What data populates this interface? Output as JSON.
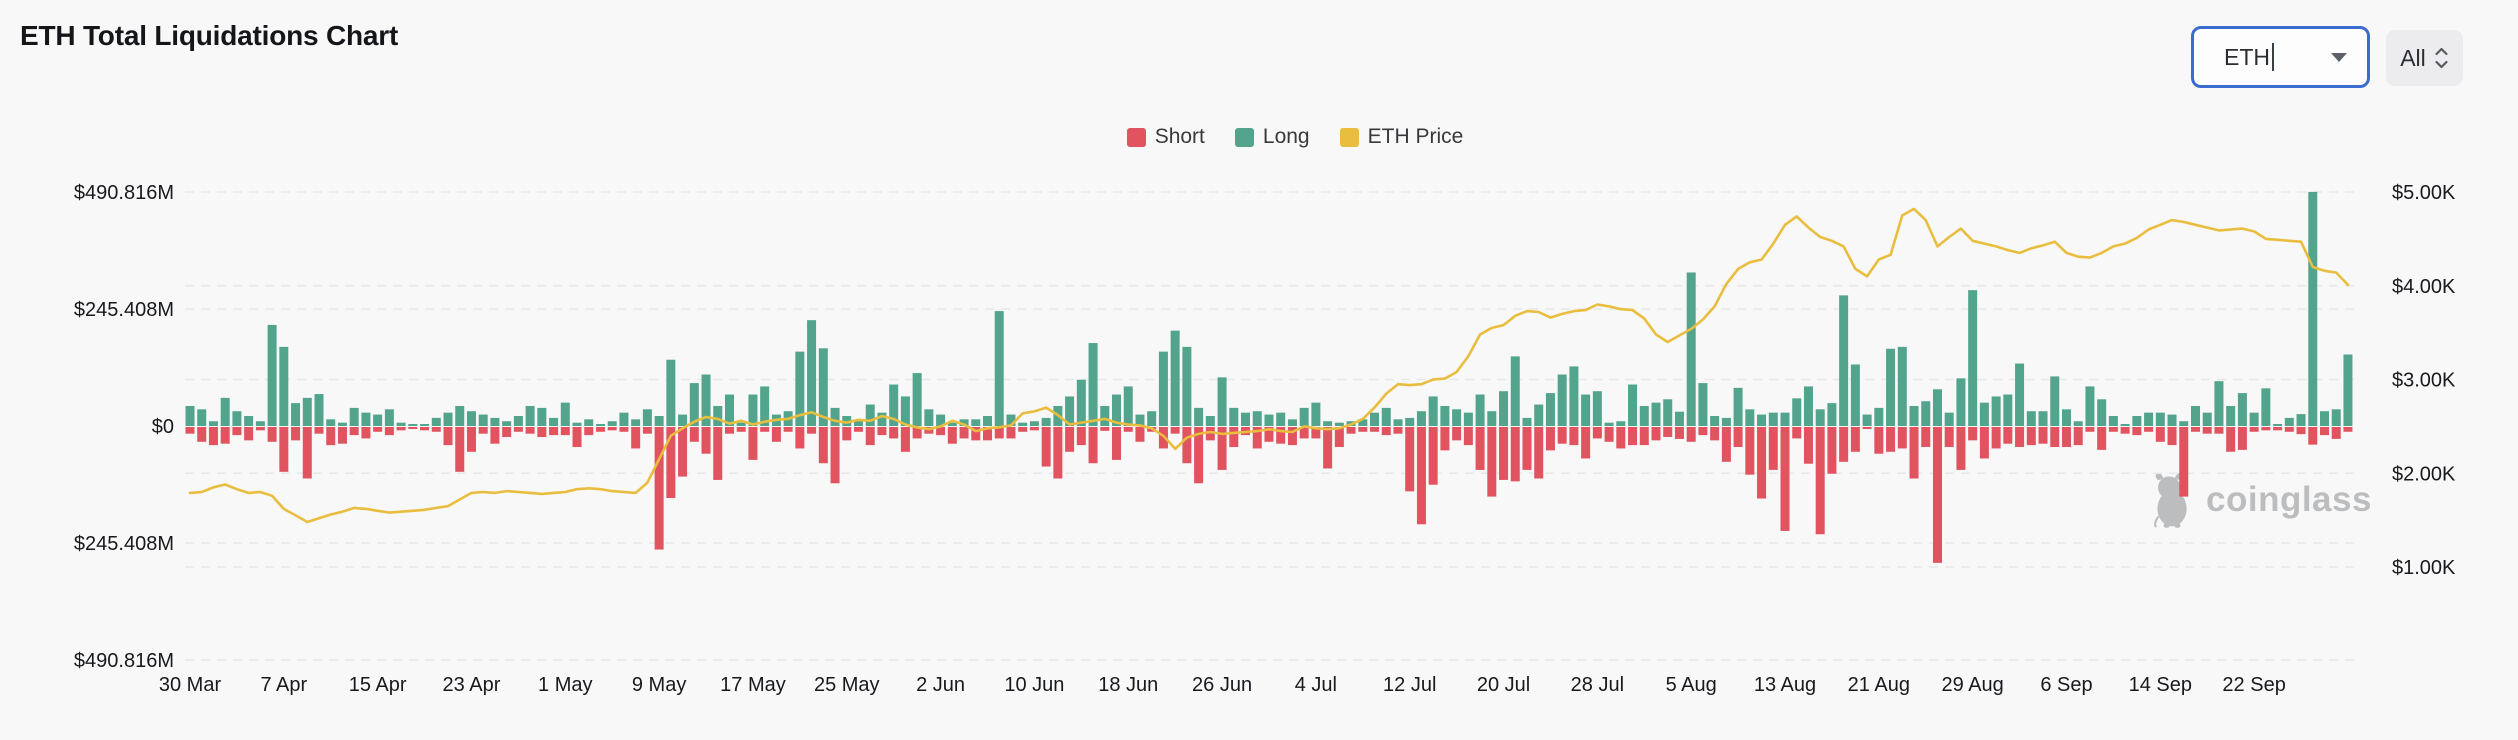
{
  "header": {
    "title": "ETH Total Liquidations Chart",
    "symbol_select": {
      "value": "ETH"
    },
    "range_select": {
      "value": "All"
    }
  },
  "legend": {
    "items": [
      {
        "label": "Short",
        "color": "#e0535f"
      },
      {
        "label": "Long",
        "color": "#52a48c"
      },
      {
        "label": "ETH Price",
        "color": "#e9bd3e"
      }
    ]
  },
  "watermark": {
    "text": "coinglass"
  },
  "chart_data": {
    "type": "bar",
    "title": "ETH Total Liquidations Chart",
    "time_range": "30 Mar - 30 Sep, daily bars",
    "grid": "dashed",
    "grid_color": "#e6e7e9",
    "x_tick_labels": [
      "30 Mar",
      "7 Apr",
      "15 Apr",
      "23 Apr",
      "1 May",
      "9 May",
      "17 May",
      "25 May",
      "2 Jun",
      "10 Jun",
      "18 Jun",
      "26 Jun",
      "4 Jul",
      "12 Jul",
      "20 Jul",
      "28 Jul",
      "5 Aug",
      "13 Aug",
      "21 Aug",
      "29 Aug",
      "6 Sep",
      "14 Sep",
      "22 Sep"
    ],
    "x_tick_interval_days": 8,
    "left_axis": {
      "title": "Liquidations (USD)",
      "tick_labels": [
        "$490.816M",
        "$245.408M",
        "$0",
        "$245.408M",
        "$490.816M"
      ],
      "max_abs_m": 490.816
    },
    "right_axis": {
      "title": "ETH Price",
      "tick_labels": [
        "$5.00K",
        "$4.00K",
        "$3.00K",
        "$2.00K",
        "$1.00K"
      ],
      "range_k": [
        1.0,
        5.0
      ]
    },
    "series": [
      {
        "name": "Short",
        "type": "bar",
        "color": "#e0535f",
        "unit": "$M",
        "direction": "down",
        "values": [
          14,
          31,
          38,
          35,
          17,
          28,
          7,
          31,
          94,
          28,
          108,
          14,
          38,
          35,
          17,
          24,
          10,
          17,
          7,
          4,
          7,
          10,
          38,
          94,
          52,
          14,
          35,
          21,
          10,
          14,
          21,
          17,
          17,
          42,
          17,
          10,
          7,
          10,
          45,
          14,
          257,
          149,
          104,
          31,
          56,
          111,
          14,
          10,
          69,
          10,
          31,
          10,
          45,
          14,
          76,
          118,
          28,
          10,
          38,
          17,
          24,
          52,
          24,
          14,
          17,
          35,
          24,
          28,
          28,
          24,
          24,
          10,
          7,
          83,
          108,
          52,
          38,
          76,
          8,
          69,
          10,
          31,
          10,
          45,
          14,
          76,
          118,
          28,
          90,
          42,
          17,
          45,
          31,
          35,
          38,
          24,
          24,
          87,
          42,
          14,
          10,
          10,
          17,
          14,
          135,
          204,
          121,
          49,
          28,
          38,
          90,
          146,
          111,
          114,
          90,
          108,
          49,
          35,
          38,
          66,
          24,
          31,
          45,
          38,
          38,
          28,
          21,
          25,
          31,
          17,
          28,
          73,
          42,
          100,
          150,
          90,
          218,
          24,
          77,
          225,
          98,
          73,
          52,
          3,
          56,
          52,
          45,
          108,
          42,
          285,
          42,
          90,
          28,
          66,
          45,
          35,
          42,
          38,
          35,
          42,
          42,
          38,
          10,
          48,
          10,
          14,
          17,
          10,
          31,
          38,
          146,
          10,
          14,
          14,
          52,
          48,
          10,
          7,
          7,
          10,
          15,
          37,
          17,
          25,
          10
        ]
      },
      {
        "name": "Long",
        "type": "bar",
        "color": "#52a48c",
        "unit": "$M",
        "direction": "up",
        "values": [
          42,
          35,
          10,
          59,
          31,
          21,
          10,
          212,
          166,
          48,
          59,
          67,
          14,
          7,
          38,
          28,
          24,
          35,
          7,
          4,
          2,
          17,
          28,
          42,
          31,
          24,
          17,
          10,
          21,
          42,
          38,
          17,
          49,
          7,
          14,
          3,
          10,
          28,
          14,
          35,
          21,
          139,
          24,
          90,
          108,
          42,
          66,
          7,
          66,
          83,
          24,
          31,
          156,
          222,
          163,
          38,
          21,
          10,
          45,
          28,
          87,
          62,
          111,
          35,
          24,
          7,
          14,
          14,
          21,
          241,
          24,
          7,
          10,
          17,
          42,
          62,
          97,
          174,
          42,
          66,
          83,
          24,
          31,
          156,
          200,
          166,
          38,
          21,
          102,
          38,
          28,
          31,
          24,
          28,
          14,
          38,
          49,
          10,
          7,
          10,
          14,
          28,
          38,
          14,
          17,
          31,
          62,
          42,
          35,
          28,
          66,
          31,
          73,
          146,
          17,
          45,
          69,
          108,
          125,
          66,
          73,
          7,
          10,
          87,
          42,
          49,
          56,
          30,
          322,
          90,
          21,
          17,
          80,
          35,
          24,
          28,
          28,
          58,
          83,
          35,
          48,
          274,
          129,
          24,
          38,
          162,
          166,
          42,
          52,
          77,
          28,
          100,
          285,
          49,
          62,
          66,
          131,
          31,
          31,
          104,
          35,
          10,
          83,
          56,
          21,
          3,
          21,
          28,
          28,
          24,
          10,
          42,
          28,
          94,
          42,
          69,
          28,
          79,
          3,
          17,
          25,
          491,
          31,
          35,
          150
        ]
      },
      {
        "name": "ETH Price",
        "type": "line",
        "color": "#e9bd3e",
        "unit": "$",
        "axis": "right",
        "values": [
          1790,
          1800,
          1850,
          1880,
          1830,
          1790,
          1800,
          1760,
          1620,
          1550,
          1480,
          1520,
          1560,
          1590,
          1630,
          1620,
          1600,
          1580,
          1590,
          1600,
          1610,
          1630,
          1650,
          1720,
          1790,
          1800,
          1790,
          1810,
          1800,
          1790,
          1780,
          1790,
          1800,
          1830,
          1840,
          1830,
          1810,
          1800,
          1790,
          1900,
          2150,
          2400,
          2480,
          2550,
          2600,
          2580,
          2530,
          2560,
          2520,
          2550,
          2570,
          2580,
          2620,
          2650,
          2600,
          2560,
          2540,
          2570,
          2560,
          2610,
          2580,
          2520,
          2490,
          2470,
          2500,
          2560,
          2520,
          2450,
          2480,
          2490,
          2510,
          2640,
          2660,
          2700,
          2620,
          2520,
          2540,
          2560,
          2580,
          2540,
          2520,
          2510,
          2480,
          2400,
          2260,
          2380,
          2420,
          2440,
          2420,
          2430,
          2440,
          2450,
          2470,
          2450,
          2440,
          2500,
          2480,
          2470,
          2480,
          2520,
          2580,
          2700,
          2850,
          2950,
          2940,
          2950,
          3000,
          3010,
          3080,
          3250,
          3480,
          3550,
          3580,
          3680,
          3730,
          3720,
          3660,
          3700,
          3730,
          3740,
          3800,
          3780,
          3750,
          3740,
          3650,
          3480,
          3400,
          3470,
          3540,
          3640,
          3780,
          4020,
          4180,
          4250,
          4280,
          4450,
          4650,
          4740,
          4620,
          4520,
          4480,
          4420,
          4180,
          4100,
          4280,
          4330,
          4750,
          4820,
          4700,
          4420,
          4520,
          4610,
          4480,
          4450,
          4420,
          4380,
          4350,
          4400,
          4430,
          4470,
          4350,
          4310,
          4300,
          4350,
          4420,
          4450,
          4510,
          4600,
          4650,
          4700,
          4680,
          4650,
          4620,
          4590,
          4600,
          4610,
          4580,
          4500,
          4490,
          4480,
          4470,
          4200,
          4160,
          4140,
          4010
        ]
      }
    ]
  }
}
